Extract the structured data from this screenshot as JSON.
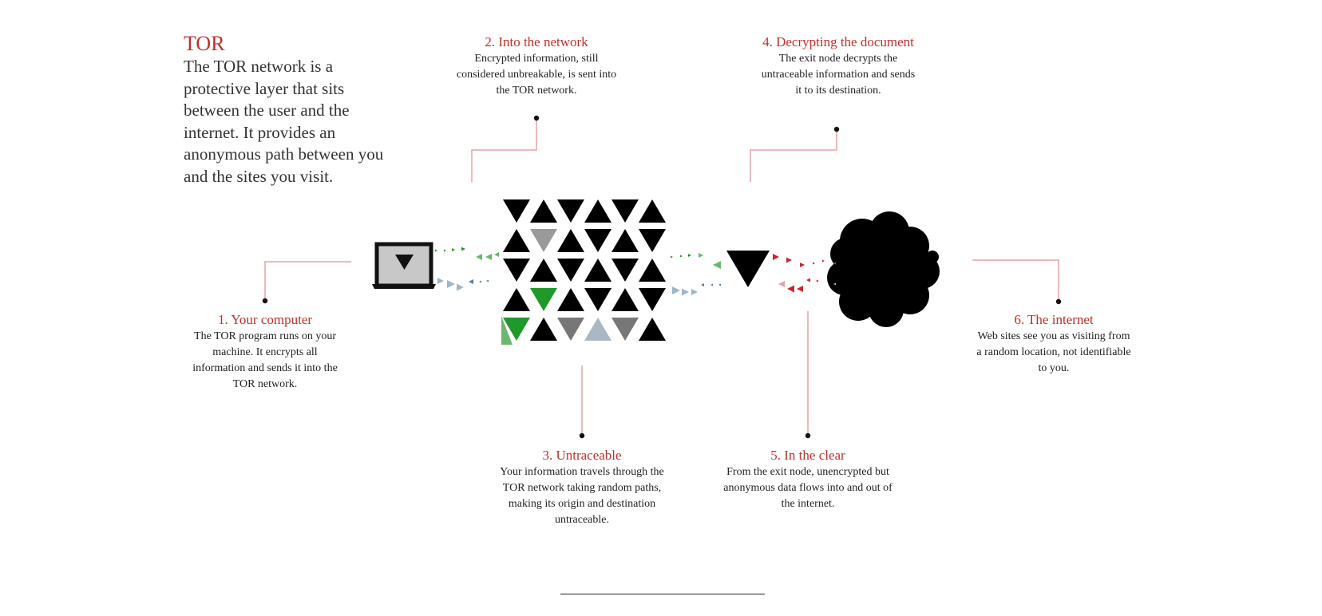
{
  "intro": {
    "title": "TOR",
    "text": "The TOR network is a protective layer that sits between the user and the internet. It provides an anonymous path between you and the sites you visit."
  },
  "steps": [
    {
      "title": "1. Your computer",
      "body": "The TOR program runs on your machine. It encrypts all information and sends it into the TOR network."
    },
    {
      "title": "2. Into the network",
      "body": "Encrypted information, still considered unbreakable, is sent into the TOR network."
    },
    {
      "title": "3. Untraceable",
      "body": "Your information travels through the TOR network taking random paths, making its origin and destination untraceable."
    },
    {
      "title": "4. Decrypting the document",
      "body": "The exit node decrypts the untraceable information and sends it to its destination."
    },
    {
      "title": "5. In the clear",
      "body": "From the exit node, unencrypted but anonymous data flows into and out of the internet."
    },
    {
      "title": "6. The internet",
      "body": "Web sites see you as visiting from a random location, not identifiable to you."
    }
  ],
  "colors": {
    "accent": "#c0302a",
    "leader": "#e6a4a6",
    "green": "#1f9a2a",
    "light_green": "#6ab86f",
    "blue": "#4f7fa0",
    "light_blue": "#9db7c8",
    "red": "#c9252f",
    "pink": "#eaa0a6",
    "black": "#000000"
  },
  "icons": [
    "laptop-icon",
    "tor-network-grid-icon",
    "exit-node-icon",
    "internet-cloud-icon"
  ]
}
